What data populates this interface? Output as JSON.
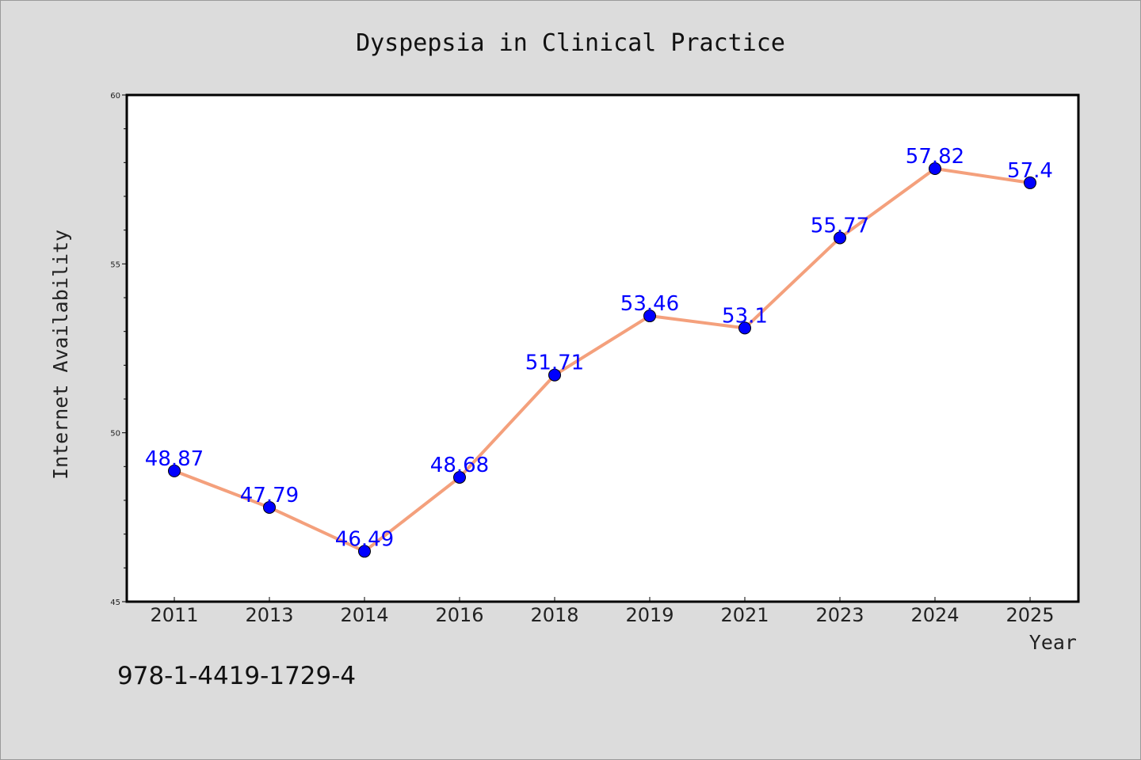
{
  "chart_data": {
    "type": "line",
    "title": "Dyspepsia in Clinical Practice",
    "xlabel": "Year",
    "ylabel": "Internet Availability",
    "categories": [
      "2011",
      "2013",
      "2014",
      "2016",
      "2018",
      "2019",
      "2021",
      "2023",
      "2024",
      "2025"
    ],
    "series": [
      {
        "values": [
          48.87,
          47.79,
          46.49,
          48.68,
          51.71,
          53.46,
          53.1,
          55.77,
          57.82,
          57.4
        ],
        "labels": [
          "48.87",
          "47.79",
          "46.49",
          "48.68",
          "51.71",
          "53.46",
          "53.1",
          "55.77",
          "57.82",
          "57.4"
        ]
      }
    ],
    "ylim": [
      45,
      60
    ],
    "yticks": [
      "45",
      "50",
      "55",
      "60"
    ],
    "grid": false,
    "legend": "none",
    "colors": {
      "line": "#f4a07c",
      "marker": "#0000ff",
      "data_label": "#0000ff",
      "background": "#dcdcdc",
      "plot_background": "#ffffff"
    }
  },
  "footer": {
    "isbn": "978-1-4419-1729-4"
  }
}
